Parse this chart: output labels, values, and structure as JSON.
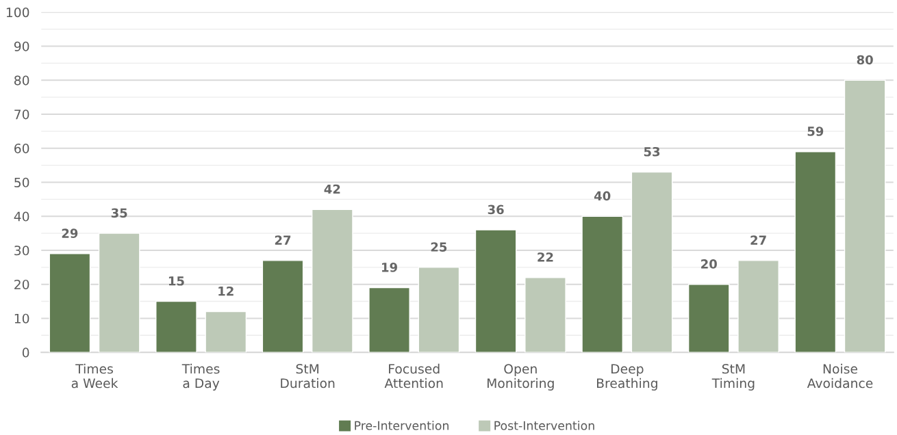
{
  "chart_data": {
    "type": "bar",
    "categories": [
      "Times\na Week",
      "Times\na Day",
      "StM\nDuration",
      "Focused\nAttention",
      "Open\nMonitoring",
      "Deep\nBreathing",
      "StM\nTiming",
      "Noise\nAvoidance"
    ],
    "series": [
      {
        "name": "Pre-Intervention",
        "color": "#617c52",
        "values": [
          29,
          15,
          27,
          19,
          36,
          40,
          20,
          59
        ]
      },
      {
        "name": "Post-Intervention",
        "color": "#bdc9b7",
        "values": [
          35,
          12,
          42,
          25,
          22,
          53,
          27,
          80
        ]
      }
    ],
    "ylim": [
      0,
      100
    ],
    "yticks": [
      0,
      {
        "value": 5,
        "label": null
      },
      10,
      {
        "value": 15,
        "label": null
      },
      20,
      {
        "value": 25,
        "label": null
      },
      30,
      {
        "value": 35,
        "label": null
      },
      40,
      {
        "value": 45,
        "label": null
      },
      50,
      {
        "value": 55,
        "label": null
      },
      60,
      {
        "value": 65,
        "label": null
      },
      70,
      {
        "value": 75,
        "label": null
      },
      80,
      {
        "value": 85,
        "label": null
      },
      90,
      {
        "value": 95,
        "label": null
      },
      100
    ],
    "grid": "y",
    "data_labels": true,
    "legend": "bottom"
  }
}
